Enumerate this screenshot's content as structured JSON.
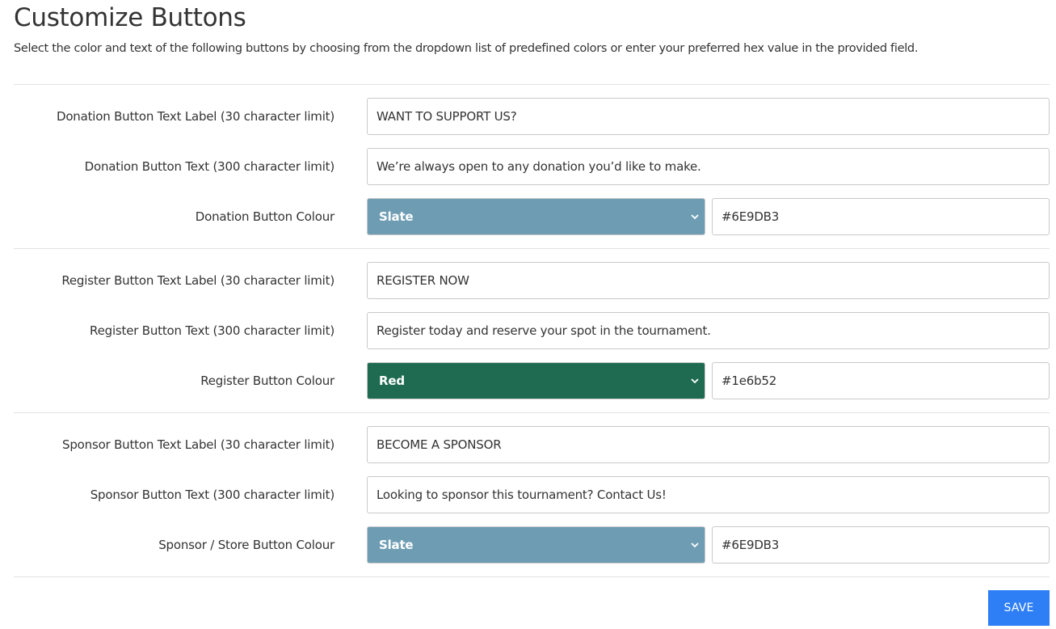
{
  "header": {
    "title": "Customize Buttons",
    "description": "Select the color and text of the following buttons by choosing from the dropdown list of predefined colors or enter your preferred hex value in the provided field."
  },
  "donation": {
    "label_title": "Donation Button Text Label (30 character limit)",
    "label_value": "WANT TO SUPPORT US?",
    "text_title": "Donation Button Text (300 character limit)",
    "text_value": "We’re always open to any donation you’d like to make.",
    "colour_title": "Donation Button Colour",
    "colour_option": "Slate",
    "colour_hex": "#6E9DB3",
    "colour_swatch": "#6e9db3"
  },
  "register": {
    "label_title": "Register Button Text Label (30 character limit)",
    "label_value": "REGISTER NOW",
    "text_title": "Register Button Text (300 character limit)",
    "text_value": "Register today and reserve your spot in the tournament.",
    "colour_title": "Register Button Colour",
    "colour_option": "Red",
    "colour_hex": "#1e6b52",
    "colour_swatch": "#1e6b52"
  },
  "sponsor": {
    "label_title": "Sponsor Button Text Label (30 character limit)",
    "label_value": "BECOME A SPONSOR",
    "text_title": "Sponsor Button Text (300 character limit)",
    "text_value": "Looking to sponsor this tournament? Contact Us!",
    "colour_title": "Sponsor / Store Button Colour",
    "colour_option": "Slate",
    "colour_hex": "#6E9DB3",
    "colour_swatch": "#6e9db3"
  },
  "actions": {
    "save_label": "SAVE",
    "save_color": "#2e7ef5"
  }
}
